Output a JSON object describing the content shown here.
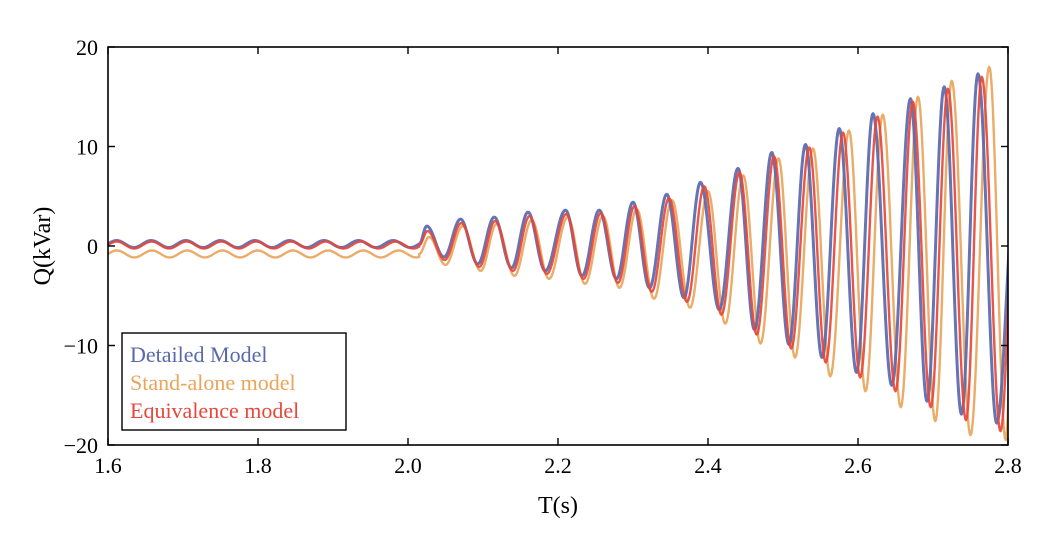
{
  "chart_data": {
    "type": "line",
    "xlabel": "T(s)",
    "ylabel": "Q(kVar)",
    "xlim": [
      1.6,
      2.8
    ],
    "ylim": [
      -20,
      20
    ],
    "xticks": [
      "1.6",
      "1.8",
      "2.0",
      "2.2",
      "2.4",
      "2.6",
      "2.8"
    ],
    "yticks": [
      "20",
      "10",
      "0",
      "−10",
      "−20"
    ],
    "legend_position": "bottom-left",
    "grid": false,
    "series": [
      {
        "name": "Detailed Model",
        "color": "#5a68ad",
        "pre_disturbance_level": 0.2,
        "oscillation_frequency_hz": 21.7,
        "peaks": [
          [
            2.025,
            2.0
          ],
          [
            2.07,
            2.7
          ],
          [
            2.115,
            2.9
          ],
          [
            2.16,
            3.4
          ],
          [
            2.21,
            3.6
          ],
          [
            2.255,
            3.6
          ],
          [
            2.3,
            4.4
          ],
          [
            2.345,
            5.2
          ],
          [
            2.39,
            6.4
          ],
          [
            2.44,
            7.8
          ],
          [
            2.485,
            9.4
          ],
          [
            2.53,
            10.2
          ],
          [
            2.575,
            11.8
          ],
          [
            2.62,
            13.3
          ],
          [
            2.67,
            14.8
          ],
          [
            2.715,
            16.0
          ],
          [
            2.76,
            17.3
          ]
        ],
        "troughs": [
          [
            2.048,
            -1.1
          ],
          [
            2.093,
            -1.8
          ],
          [
            2.138,
            -2.2
          ],
          [
            2.183,
            -2.5
          ],
          [
            2.232,
            -3.0
          ],
          [
            2.278,
            -3.3
          ],
          [
            2.322,
            -4.2
          ],
          [
            2.368,
            -5.2
          ],
          [
            2.415,
            -6.4
          ],
          [
            2.462,
            -8.4
          ],
          [
            2.508,
            -9.9
          ],
          [
            2.552,
            -11.2
          ],
          [
            2.598,
            -12.7
          ],
          [
            2.645,
            -14.0
          ],
          [
            2.692,
            -15.6
          ],
          [
            2.738,
            -16.9
          ],
          [
            2.785,
            -17.8
          ]
        ]
      },
      {
        "name": "Stand-alone model",
        "color": "#e8a55b",
        "pre_disturbance_level": -0.8,
        "oscillation_frequency_hz": 21.3,
        "peaks": [
          [
            2.028,
            0.9
          ],
          [
            2.073,
            2.0
          ],
          [
            2.118,
            2.2
          ],
          [
            2.165,
            2.6
          ],
          [
            2.213,
            2.9
          ],
          [
            2.26,
            3.0
          ],
          [
            2.305,
            3.7
          ],
          [
            2.352,
            4.6
          ],
          [
            2.4,
            5.5
          ],
          [
            2.447,
            7.1
          ],
          [
            2.494,
            8.8
          ],
          [
            2.54,
            9.8
          ],
          [
            2.588,
            11.6
          ],
          [
            2.633,
            13.2
          ],
          [
            2.68,
            15.0
          ],
          [
            2.725,
            16.6
          ],
          [
            2.775,
            18.0
          ]
        ],
        "troughs": [
          [
            2.05,
            -1.9
          ],
          [
            2.097,
            -2.5
          ],
          [
            2.142,
            -3.0
          ],
          [
            2.188,
            -3.3
          ],
          [
            2.236,
            -3.8
          ],
          [
            2.282,
            -4.2
          ],
          [
            2.328,
            -5.3
          ],
          [
            2.376,
            -6.2
          ],
          [
            2.423,
            -7.8
          ],
          [
            2.47,
            -9.8
          ],
          [
            2.516,
            -11.2
          ],
          [
            2.563,
            -13.1
          ],
          [
            2.61,
            -14.6
          ],
          [
            2.657,
            -16.2
          ],
          [
            2.703,
            -17.6
          ],
          [
            2.75,
            -19.0
          ],
          [
            2.797,
            -19.5
          ]
        ]
      },
      {
        "name": "Equivalence model",
        "color": "#e8473a",
        "pre_disturbance_level": 0.1,
        "oscillation_frequency_hz": 21.5,
        "peaks": [
          [
            2.026,
            1.5
          ],
          [
            2.071,
            2.3
          ],
          [
            2.116,
            2.5
          ],
          [
            2.162,
            3.0
          ],
          [
            2.211,
            3.2
          ],
          [
            2.257,
            3.3
          ],
          [
            2.302,
            4.0
          ],
          [
            2.348,
            4.8
          ],
          [
            2.395,
            6.0
          ],
          [
            2.442,
            7.4
          ],
          [
            2.488,
            9.0
          ],
          [
            2.535,
            9.9
          ],
          [
            2.58,
            11.4
          ],
          [
            2.626,
            13.0
          ],
          [
            2.673,
            14.5
          ],
          [
            2.72,
            15.8
          ],
          [
            2.765,
            17.0
          ]
        ],
        "troughs": [
          [
            2.049,
            -1.4
          ],
          [
            2.095,
            -2.1
          ],
          [
            2.14,
            -2.5
          ],
          [
            2.185,
            -2.8
          ],
          [
            2.234,
            -3.3
          ],
          [
            2.28,
            -3.7
          ],
          [
            2.325,
            -4.6
          ],
          [
            2.372,
            -5.6
          ],
          [
            2.418,
            -6.9
          ],
          [
            2.465,
            -8.9
          ],
          [
            2.511,
            -10.3
          ],
          [
            2.557,
            -11.7
          ],
          [
            2.603,
            -13.2
          ],
          [
            2.65,
            -14.6
          ],
          [
            2.697,
            -16.2
          ],
          [
            2.744,
            -17.5
          ],
          [
            2.79,
            -18.6
          ]
        ]
      }
    ]
  }
}
